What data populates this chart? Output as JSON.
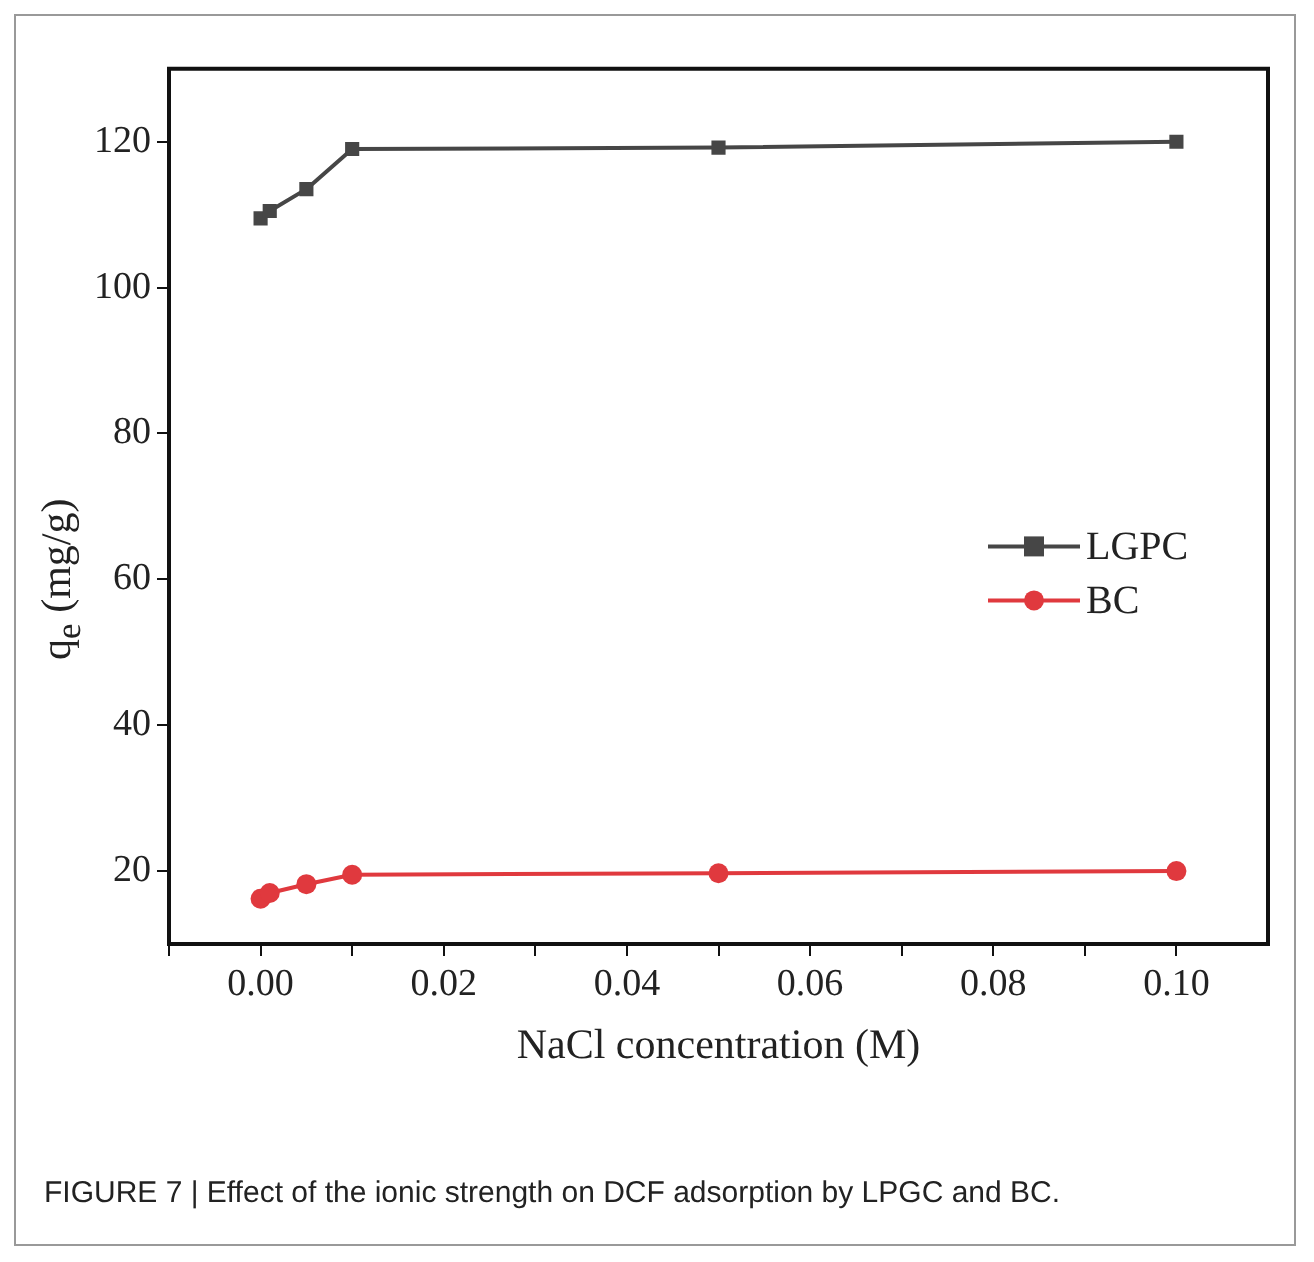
{
  "chart_data": {
    "type": "line",
    "xlabel": "NaCl concentration (M)",
    "ylabel": "q$_{e}$ (mg/g)",
    "x": [
      0,
      0.001,
      0.005,
      0.01,
      0.05,
      0.1
    ],
    "series": [
      {
        "name": "LGPC",
        "color": "#464646",
        "marker": "square",
        "values": [
          109.5,
          110.5,
          113.5,
          119,
          119.2,
          120
        ]
      },
      {
        "name": "BC",
        "color": "#e0393e",
        "marker": "circle",
        "values": [
          16.2,
          17,
          18.2,
          19.5,
          19.7,
          20
        ]
      }
    ],
    "xlim": [
      -0.01,
      0.11
    ],
    "xticks": [
      {
        "value": -0.01,
        "label": null
      },
      {
        "value": 0,
        "label": "0.00"
      },
      {
        "value": 0.01,
        "label": null
      },
      {
        "value": 0.02,
        "label": "0.02"
      },
      {
        "value": 0.03,
        "label": null
      },
      {
        "value": 0.04,
        "label": "0.04"
      },
      {
        "value": 0.05,
        "label": null
      },
      {
        "value": 0.06,
        "label": "0.06"
      },
      {
        "value": 0.07,
        "label": null
      },
      {
        "value": 0.08,
        "label": "0.08"
      },
      {
        "value": 0.09,
        "label": null
      },
      {
        "value": 0.1,
        "label": "0.10"
      }
    ],
    "ylim": [
      10,
      130
    ],
    "yticks": [
      20,
      40,
      60,
      80,
      100,
      120
    ],
    "legend": "right",
    "grid": false,
    "annotations": [
      "FIGURE 7 | Effect of the ionic strength on DCF adsorption by LPGC and BC."
    ]
  }
}
